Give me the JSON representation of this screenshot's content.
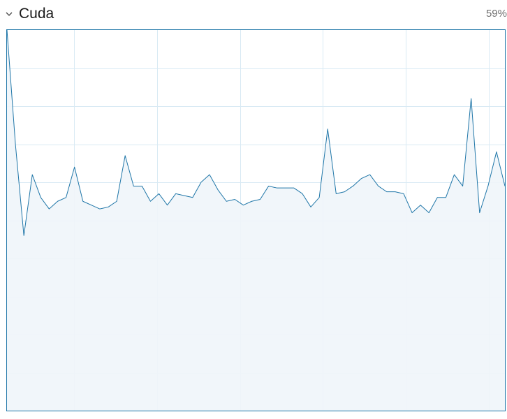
{
  "engine": {
    "title": "Cuda",
    "utilization_label": "59%",
    "expanded": true,
    "toggle_icon": "chevron-down-icon"
  },
  "chart_data": {
    "type": "area",
    "ylim": [
      0,
      100
    ],
    "grid": true,
    "colors": {
      "line": "#1f76a8",
      "fill": "#f0f5fa",
      "grid": "#d9eaf4",
      "border": "#1f76a8"
    },
    "values": [
      100,
      70,
      46,
      62,
      56,
      53,
      55,
      56,
      64,
      55,
      54,
      53,
      53.5,
      55,
      67,
      59,
      59,
      55,
      57,
      54,
      57,
      56.5,
      56,
      60,
      62,
      58,
      55,
      55.5,
      54,
      55,
      55.5,
      59,
      58.5,
      58.5,
      58.5,
      57,
      53.5,
      56,
      74,
      57,
      57.5,
      59,
      61,
      62,
      59,
      57.5,
      57.5,
      57,
      52,
      54,
      52,
      56,
      56,
      62,
      59,
      82,
      52,
      59,
      68,
      59
    ]
  }
}
